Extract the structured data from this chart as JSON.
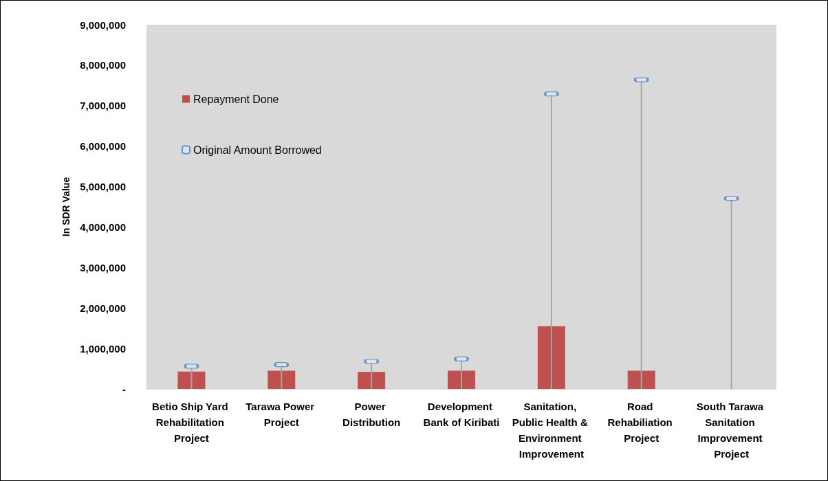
{
  "chart_data": {
    "type": "bar",
    "ylabel": "In SDR Value",
    "categories": [
      "Betio Ship Yard Rehabilitation Project",
      "Tarawa Power Project",
      "Power Distribution",
      "Development Bank of Kiribati",
      "Sanitation, Public Health & Environment Improvement",
      "Road Rehabiliation Project",
      "South Tarawa Sanitation Improvement Project"
    ],
    "series": [
      {
        "name": "Repayment Done",
        "color": "#c0504d",
        "values": [
          430000,
          450000,
          420000,
          450000,
          1550000,
          450000,
          0
        ]
      },
      {
        "name": "Original Amount Borrowed",
        "type": "lollipop",
        "color": "#4f81bd",
        "values": [
          560000,
          600000,
          680000,
          740000,
          7290000,
          7640000,
          4710000
        ]
      }
    ],
    "ylim": [
      0,
      9000000
    ],
    "yticks": [
      {
        "value": 0,
        "label": "-"
      },
      {
        "value": 1000000,
        "label": "1,000,000"
      },
      {
        "value": 2000000,
        "label": "2,000,000"
      },
      {
        "value": 3000000,
        "label": "3,000,000"
      },
      {
        "value": 4000000,
        "label": "4,000,000"
      },
      {
        "value": 5000000,
        "label": "5,000,000"
      },
      {
        "value": 6000000,
        "label": "6,000,000"
      },
      {
        "value": 7000000,
        "label": "7,000,000"
      },
      {
        "value": 8000000,
        "label": "8,000,000"
      },
      {
        "value": 9000000,
        "label": "9,000,000"
      }
    ],
    "legend": "top left",
    "grid": false,
    "marker": "square"
  }
}
